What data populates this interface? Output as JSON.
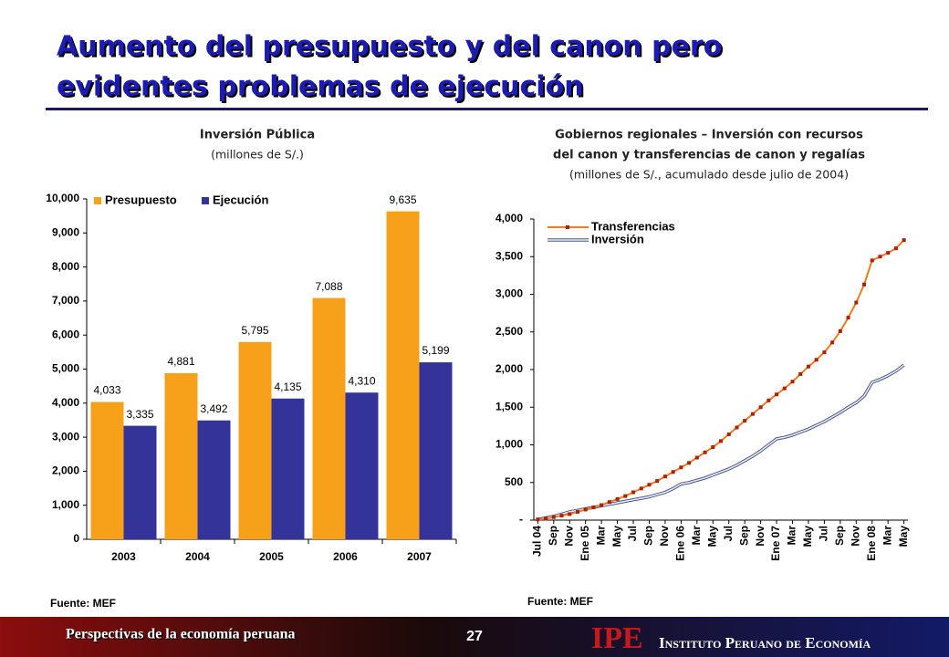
{
  "slide": {
    "title_lines": [
      "Aumento del presupuesto y del canon pero",
      "evidentes problemas de ejecución"
    ],
    "footer": "Perspectivas de la economía peruana",
    "page_number": "27",
    "logo": "IPE",
    "institute": "Instituto Peruano de Economía"
  },
  "chart_data": [
    {
      "type": "bar",
      "title": "Inversión Pública",
      "subtitle": "(millones de S/.)",
      "source": "Fuente: MEF",
      "categories": [
        "2003",
        "2004",
        "2005",
        "2006",
        "2007"
      ],
      "series": [
        {
          "name": "Presupuesto",
          "color": "#f7a11a",
          "values": [
            4033,
            4881,
            5795,
            7088,
            9635
          ],
          "value_labels": [
            "4,033",
            "4,881",
            "5,795",
            "7,088",
            "9,635"
          ]
        },
        {
          "name": "Ejecución",
          "color": "#333399",
          "values": [
            3335,
            3492,
            4135,
            4310,
            5199
          ],
          "value_labels": [
            "3,335",
            "3,492",
            "4,135",
            "4,310",
            "5,199"
          ]
        }
      ],
      "ylim": [
        0,
        10000
      ],
      "yticks": [
        0,
        {
          "value": 1000,
          "label": "1,000"
        },
        {
          "value": 2000,
          "label": "2,000"
        },
        {
          "value": 3000,
          "label": "3,000"
        },
        {
          "value": 4000,
          "label": "4,000"
        },
        {
          "value": 5000,
          "label": "5,000"
        },
        {
          "value": 6000,
          "label": "6,000"
        },
        {
          "value": 7000,
          "label": "7,000"
        },
        {
          "value": 8000,
          "label": "8,000"
        },
        {
          "value": 9000,
          "label": "9,000"
        },
        {
          "value": 10000,
          "label": "10,000"
        }
      ],
      "legend": "top-left"
    },
    {
      "type": "line",
      "title_lines": [
        "Gobiernos regionales – Inversión con recursos",
        "del canon y transferencias de canon y regalías"
      ],
      "subtitle": "(millones de S/., acumulado desde julio de 2004)",
      "source": "Fuente: MEF",
      "categories": [
        "Jul 04",
        null,
        "Sep",
        null,
        "Nov",
        null,
        "Ene 05",
        null,
        "Mar",
        null,
        "May",
        null,
        "Jul",
        null,
        "Sep",
        null,
        "Nov",
        null,
        "Ene 06",
        null,
        "Mar",
        null,
        "May",
        null,
        "Jul",
        null,
        "Sep",
        null,
        "Nov",
        null,
        "Ene 07",
        null,
        "Mar",
        null,
        "May",
        null,
        "Jul",
        null,
        "Sep",
        null,
        "Nov",
        null,
        "Ene 08",
        null,
        "Mar",
        null,
        "May"
      ],
      "series": [
        {
          "name": "Transferencias",
          "color": "#f07d1a",
          "marker_color": "#b01e10",
          "values": [
            10,
            20,
            40,
            60,
            80,
            110,
            140,
            170,
            200,
            240,
            280,
            320,
            370,
            420,
            470,
            520,
            580,
            640,
            700,
            760,
            830,
            900,
            970,
            1050,
            1140,
            1230,
            1320,
            1410,
            1500,
            1590,
            1670,
            1750,
            1840,
            1940,
            2040,
            2130,
            2230,
            2360,
            2510,
            2690,
            2890,
            3130,
            3450,
            3500,
            3550,
            3610,
            3720
          ]
        },
        {
          "name": "Inversión",
          "color": "#8a9bc0",
          "values": [
            10,
            30,
            50,
            80,
            110,
            130,
            150,
            170,
            190,
            210,
            230,
            250,
            270,
            290,
            310,
            340,
            370,
            420,
            480,
            500,
            530,
            560,
            600,
            640,
            680,
            730,
            790,
            850,
            920,
            1000,
            1080,
            1100,
            1130,
            1170,
            1210,
            1260,
            1310,
            1370,
            1430,
            1500,
            1560,
            1650,
            1830,
            1870,
            1920,
            1980,
            2060
          ]
        }
      ],
      "ylim": [
        0,
        4000
      ],
      "yticks": [
        {
          "value": 0,
          "label": "-"
        },
        500,
        {
          "value": 1000,
          "label": "1,000"
        },
        {
          "value": 1500,
          "label": "1,500"
        },
        {
          "value": 2000,
          "label": "2,000"
        },
        {
          "value": 2500,
          "label": "2,500"
        },
        {
          "value": 3000,
          "label": "3,000"
        },
        {
          "value": 3500,
          "label": "3,500"
        },
        {
          "value": 4000,
          "label": "4,000"
        }
      ],
      "legend": "top-left"
    }
  ]
}
